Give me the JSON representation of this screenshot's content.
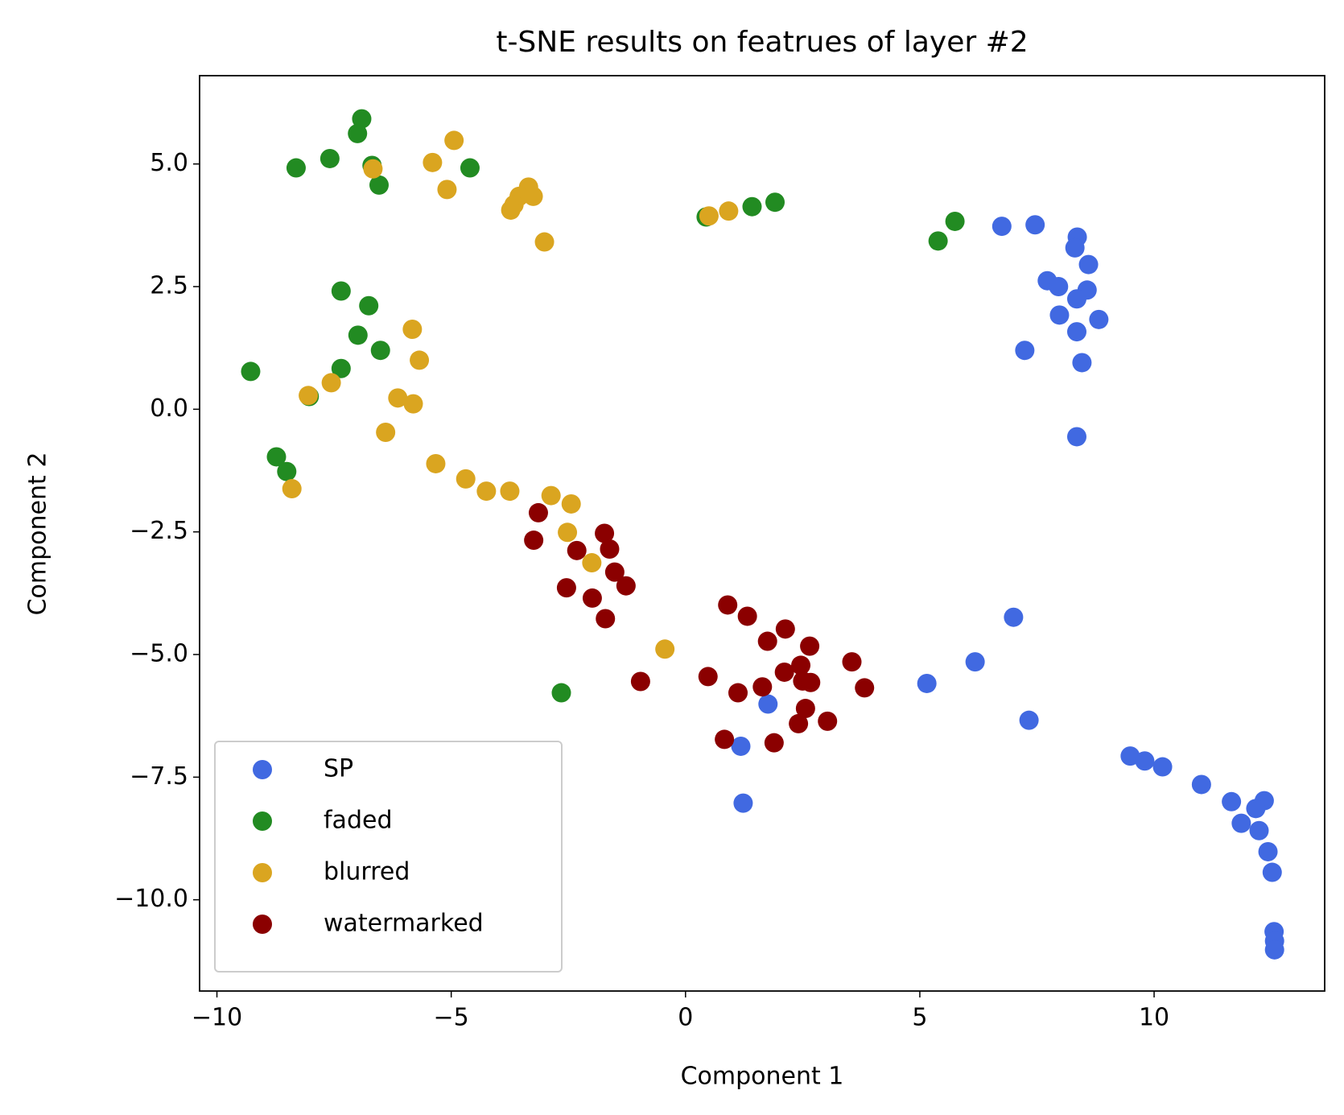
{
  "chart_data": {
    "type": "scatter",
    "title": "t-SNE results on featrues of layer #2",
    "x_label": "Component 1",
    "y_label": "Component 2",
    "xlim": [
      -10.37,
      13.64
    ],
    "ylim": [
      -11.86,
      6.8
    ],
    "xticks": [
      {
        "value": -10,
        "label": "−10"
      },
      {
        "value": -5,
        "label": "−5"
      },
      0,
      5,
      10
    ],
    "yticks": [
      {
        "value": -10,
        "label": "−10.0"
      },
      {
        "value": -7.5,
        "label": "−7.5"
      },
      {
        "value": -5,
        "label": "−5.0"
      },
      {
        "value": -2.5,
        "label": "−2.5"
      },
      {
        "value": 0,
        "label": "0.0"
      },
      {
        "value": 2.5,
        "label": "2.5"
      },
      {
        "value": 5,
        "label": "5.0"
      }
    ],
    "grid": false,
    "legend_position": "lower left",
    "series": [
      {
        "name": "SP",
        "color": "#4169e1",
        "x": [
          6.75,
          7.46,
          8.36,
          8.31,
          8.6,
          7.72,
          7.96,
          8.57,
          8.35,
          7.98,
          8.82,
          8.35,
          7.24,
          8.46,
          8.35,
          7.0,
          6.18,
          5.15,
          7.33,
          1.76,
          1.18,
          1.23,
          9.49,
          9.8,
          10.18,
          11.01,
          11.65,
          12.35,
          12.17,
          11.86,
          12.24,
          12.43,
          12.52,
          12.56,
          12.57,
          12.57
        ],
        "y": [
          3.73,
          3.76,
          3.51,
          3.29,
          2.95,
          2.62,
          2.5,
          2.43,
          2.25,
          1.92,
          1.83,
          1.58,
          1.2,
          0.95,
          -0.56,
          -4.24,
          -5.15,
          -5.59,
          -6.34,
          -6.01,
          -6.87,
          -8.03,
          -7.07,
          -7.17,
          -7.29,
          -7.65,
          -8.0,
          -7.98,
          -8.14,
          -8.44,
          -8.59,
          -9.02,
          -9.44,
          -10.65,
          -10.84,
          -11.02
        ]
      },
      {
        "name": "faded",
        "color": "#228b22",
        "x": [
          -6.91,
          -7.0,
          -7.59,
          -8.31,
          -6.54,
          -4.6,
          -6.69,
          0.44,
          1.42,
          1.91,
          5.75,
          5.39,
          -7.35,
          -6.76,
          -6.99,
          -6.51,
          -7.35,
          -9.28,
          -8.03,
          -8.73,
          -8.51,
          -2.65
        ],
        "y": [
          5.92,
          5.62,
          5.11,
          4.92,
          4.57,
          4.92,
          4.97,
          3.92,
          4.13,
          4.22,
          3.83,
          3.43,
          2.41,
          2.11,
          1.51,
          1.2,
          0.83,
          0.77,
          0.26,
          -0.97,
          -1.27,
          -5.78
        ]
      },
      {
        "name": "blurred",
        "color": "#daa520",
        "x": [
          -4.94,
          -5.4,
          -6.67,
          -5.09,
          -3.35,
          -3.55,
          -3.25,
          -3.66,
          -3.73,
          -3.01,
          0.5,
          0.92,
          -5.83,
          -5.68,
          -7.56,
          -8.05,
          -6.14,
          -5.81,
          -6.4,
          -5.33,
          -4.69,
          -4.25,
          -3.75,
          -2.87,
          -2.44,
          -2.52,
          -2.0,
          -8.4,
          -0.44
        ],
        "y": [
          5.48,
          5.03,
          4.9,
          4.48,
          4.53,
          4.34,
          4.34,
          4.17,
          4.06,
          3.41,
          3.94,
          4.04,
          1.63,
          1.0,
          0.54,
          0.28,
          0.23,
          0.11,
          -0.47,
          -1.11,
          -1.42,
          -1.67,
          -1.67,
          -1.76,
          -1.93,
          -2.51,
          -3.13,
          -1.62,
          -4.89
        ]
      },
      {
        "name": "watermarked",
        "color": "#8b0000",
        "x": [
          -3.14,
          -3.24,
          -1.73,
          -2.32,
          -1.62,
          -1.51,
          -1.27,
          -2.54,
          -1.99,
          -1.71,
          -0.96,
          0.9,
          1.32,
          2.13,
          1.75,
          2.65,
          3.55,
          2.46,
          2.11,
          2.5,
          2.67,
          3.82,
          0.48,
          1.12,
          1.64,
          2.56,
          3.03,
          2.41,
          0.83,
          1.89
        ],
        "y": [
          -2.11,
          -2.67,
          -2.53,
          -2.88,
          -2.85,
          -3.32,
          -3.6,
          -3.64,
          -3.85,
          -4.27,
          -5.55,
          -3.99,
          -4.22,
          -4.48,
          -4.73,
          -4.83,
          -5.15,
          -5.22,
          -5.36,
          -5.54,
          -5.57,
          -5.68,
          -5.45,
          -5.78,
          -5.66,
          -6.1,
          -6.36,
          -6.41,
          -6.73,
          -6.8
        ]
      }
    ]
  }
}
